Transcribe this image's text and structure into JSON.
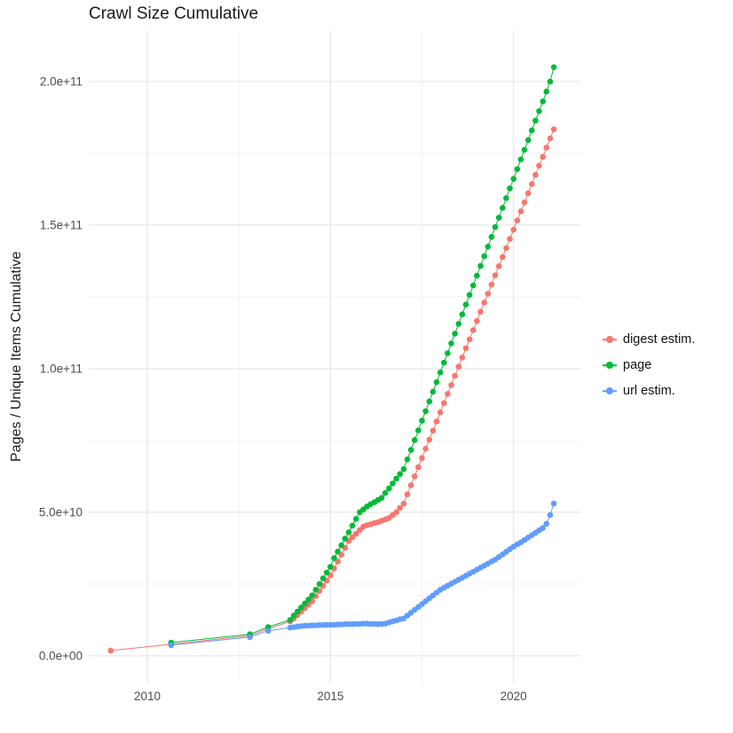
{
  "title": "Crawl Size Cumulative",
  "axes": {
    "y_label": "Pages / Unique Items Cumulative",
    "x_ticks": [
      {
        "value": 2010,
        "label": "2010"
      },
      {
        "value": 2015,
        "label": "2015"
      },
      {
        "value": 2020,
        "label": "2020"
      }
    ],
    "y_ticks": [
      {
        "value": 0,
        "label": "0.0e+00"
      },
      {
        "value": 50,
        "label": "5.0e+10"
      },
      {
        "value": 100,
        "label": "1.0e+11"
      },
      {
        "value": 150,
        "label": "1.5e+11"
      },
      {
        "value": 200,
        "label": "2.0e+11"
      }
    ]
  },
  "legend": {
    "items": [
      {
        "label": "digest estim.",
        "color": "#F8766D"
      },
      {
        "label": "page",
        "color": "#00BA38"
      },
      {
        "label": "url estim.",
        "color": "#619CFF"
      }
    ]
  },
  "colors": {
    "grid_major": "#e4e4e4",
    "grid_minor": "#f1f1f1",
    "tick_text": "#4d4d4d"
  },
  "chart_data": {
    "type": "scatter",
    "geom": "point+line",
    "title": "Crawl Size Cumulative",
    "xlabel": "",
    "ylabel": "Pages / Unique Items Cumulative",
    "grid": true,
    "legend_position": "right",
    "x_domain": [
      2008.4,
      2021.85
    ],
    "y_domain_e9": [
      -9.3,
      217.6
    ],
    "y_unit_note": "values in billions (1e9); axis labels shown in scientific notation",
    "x_major": [
      2010,
      2015,
      2020
    ],
    "x_minor": [
      2012.5,
      2017.5
    ],
    "y_major_e9": [
      0,
      50,
      100,
      150,
      200
    ],
    "y_minor_e9": [
      25,
      75,
      125,
      175
    ],
    "series": [
      {
        "name": "digest estim.",
        "color": "#F8766D",
        "points_e9": [
          [
            2009.0,
            1.8
          ],
          [
            2010.65,
            4.0
          ],
          [
            2012.8,
            7.0
          ],
          [
            2013.3,
            9.3
          ],
          [
            2013.9,
            12.0
          ],
          [
            2014.0,
            13.0
          ],
          [
            2014.1,
            14.2
          ],
          [
            2014.2,
            15.4
          ],
          [
            2014.3,
            16.6
          ],
          [
            2014.4,
            17.8
          ],
          [
            2014.5,
            19.0
          ],
          [
            2014.6,
            20.8
          ],
          [
            2014.7,
            22.6
          ],
          [
            2014.8,
            24.4
          ],
          [
            2014.9,
            26.2
          ],
          [
            2015.0,
            28.0
          ],
          [
            2015.1,
            30.4
          ],
          [
            2015.2,
            32.8
          ],
          [
            2015.3,
            35.2
          ],
          [
            2015.4,
            37.6
          ],
          [
            2015.5,
            40.0
          ],
          [
            2015.6,
            41.3
          ],
          [
            2015.7,
            42.5
          ],
          [
            2015.8,
            43.8
          ],
          [
            2015.9,
            45.0
          ],
          [
            2016.0,
            45.5
          ],
          [
            2016.1,
            45.8
          ],
          [
            2016.2,
            46.2
          ],
          [
            2016.3,
            46.5
          ],
          [
            2016.4,
            47.0
          ],
          [
            2016.5,
            47.5
          ],
          [
            2016.6,
            48.0
          ],
          [
            2016.7,
            49.0
          ],
          [
            2016.8,
            50.0
          ],
          [
            2016.9,
            51.5
          ],
          [
            2017.0,
            53.0
          ],
          [
            2017.1,
            56.2
          ],
          [
            2017.2,
            59.4
          ],
          [
            2017.3,
            62.5
          ],
          [
            2017.4,
            65.7
          ],
          [
            2017.5,
            68.9
          ],
          [
            2017.6,
            72.1
          ],
          [
            2017.7,
            75.3
          ],
          [
            2017.8,
            78.4
          ],
          [
            2017.9,
            81.6
          ],
          [
            2018.0,
            84.8
          ],
          [
            2018.1,
            88.0
          ],
          [
            2018.2,
            91.2
          ],
          [
            2018.3,
            94.3
          ],
          [
            2018.4,
            97.5
          ],
          [
            2018.5,
            100.7
          ],
          [
            2018.6,
            103.9
          ],
          [
            2018.7,
            107.1
          ],
          [
            2018.8,
            110.2
          ],
          [
            2018.9,
            113.4
          ],
          [
            2019.0,
            116.6
          ],
          [
            2019.1,
            119.8
          ],
          [
            2019.2,
            123.0
          ],
          [
            2019.3,
            126.1
          ],
          [
            2019.4,
            129.3
          ],
          [
            2019.5,
            132.5
          ],
          [
            2019.6,
            135.7
          ],
          [
            2019.7,
            138.9
          ],
          [
            2019.8,
            142.0
          ],
          [
            2019.9,
            145.2
          ],
          [
            2020.0,
            148.4
          ],
          [
            2020.1,
            151.6
          ],
          [
            2020.2,
            154.8
          ],
          [
            2020.3,
            157.9
          ],
          [
            2020.4,
            161.1
          ],
          [
            2020.5,
            164.3
          ],
          [
            2020.6,
            167.5
          ],
          [
            2020.7,
            170.7
          ],
          [
            2020.8,
            173.8
          ],
          [
            2020.9,
            177.0
          ],
          [
            2021.0,
            180.2
          ],
          [
            2021.1,
            183.4
          ]
        ]
      },
      {
        "name": "page",
        "color": "#00BA38",
        "points_e9": [
          [
            2010.65,
            4.6
          ],
          [
            2012.8,
            7.5
          ],
          [
            2013.3,
            10.0
          ],
          [
            2013.9,
            12.5
          ],
          [
            2014.0,
            14.0
          ],
          [
            2014.1,
            15.4
          ],
          [
            2014.2,
            16.8
          ],
          [
            2014.3,
            18.2
          ],
          [
            2014.4,
            19.6
          ],
          [
            2014.5,
            21.0
          ],
          [
            2014.6,
            23.0
          ],
          [
            2014.7,
            25.0
          ],
          [
            2014.8,
            27.0
          ],
          [
            2014.9,
            29.0
          ],
          [
            2015.0,
            31.0
          ],
          [
            2015.1,
            34.0
          ],
          [
            2015.2,
            36.3
          ],
          [
            2015.3,
            38.5
          ],
          [
            2015.4,
            40.8
          ],
          [
            2015.5,
            43.0
          ],
          [
            2015.6,
            45.3
          ],
          [
            2015.7,
            47.7
          ],
          [
            2015.8,
            50.0
          ],
          [
            2015.9,
            51.0
          ],
          [
            2016.0,
            52.0
          ],
          [
            2016.1,
            52.8
          ],
          [
            2016.2,
            53.5
          ],
          [
            2016.3,
            54.3
          ],
          [
            2016.4,
            55.0
          ],
          [
            2016.5,
            56.7
          ],
          [
            2016.6,
            58.3
          ],
          [
            2016.7,
            60.0
          ],
          [
            2016.8,
            61.7
          ],
          [
            2016.9,
            63.3
          ],
          [
            2017.0,
            65.0
          ],
          [
            2017.1,
            68.4
          ],
          [
            2017.2,
            71.7
          ],
          [
            2017.3,
            75.1
          ],
          [
            2017.4,
            78.5
          ],
          [
            2017.5,
            81.9
          ],
          [
            2017.6,
            85.2
          ],
          [
            2017.7,
            88.6
          ],
          [
            2017.8,
            92.0
          ],
          [
            2017.9,
            95.3
          ],
          [
            2018.0,
            98.7
          ],
          [
            2018.1,
            102.1
          ],
          [
            2018.2,
            105.4
          ],
          [
            2018.3,
            108.8
          ],
          [
            2018.4,
            112.2
          ],
          [
            2018.5,
            115.6
          ],
          [
            2018.6,
            118.9
          ],
          [
            2018.7,
            122.3
          ],
          [
            2018.8,
            125.7
          ],
          [
            2018.9,
            129.0
          ],
          [
            2019.0,
            132.4
          ],
          [
            2019.1,
            135.8
          ],
          [
            2019.2,
            139.2
          ],
          [
            2019.3,
            142.5
          ],
          [
            2019.4,
            145.9
          ],
          [
            2019.5,
            149.3
          ],
          [
            2019.6,
            152.6
          ],
          [
            2019.7,
            156.0
          ],
          [
            2019.8,
            159.4
          ],
          [
            2019.9,
            162.8
          ],
          [
            2020.0,
            166.1
          ],
          [
            2020.1,
            169.5
          ],
          [
            2020.2,
            172.9
          ],
          [
            2020.3,
            176.2
          ],
          [
            2020.4,
            179.6
          ],
          [
            2020.5,
            183.0
          ],
          [
            2020.6,
            186.4
          ],
          [
            2020.7,
            189.7
          ],
          [
            2020.8,
            193.1
          ],
          [
            2020.9,
            196.5
          ],
          [
            2021.0,
            200.0
          ],
          [
            2021.1,
            205.0
          ]
        ]
      },
      {
        "name": "url estim.",
        "color": "#619CFF",
        "points_e9": [
          [
            2010.65,
            3.7
          ],
          [
            2012.8,
            6.5
          ],
          [
            2013.3,
            8.7
          ],
          [
            2013.9,
            9.8
          ],
          [
            2014.0,
            10.0
          ],
          [
            2014.1,
            10.2
          ],
          [
            2014.2,
            10.3
          ],
          [
            2014.3,
            10.5
          ],
          [
            2014.4,
            10.5
          ],
          [
            2014.5,
            10.6
          ],
          [
            2014.6,
            10.6
          ],
          [
            2014.7,
            10.7
          ],
          [
            2014.8,
            10.7
          ],
          [
            2014.9,
            10.8
          ],
          [
            2015.0,
            10.8
          ],
          [
            2015.1,
            10.8
          ],
          [
            2015.2,
            10.9
          ],
          [
            2015.3,
            10.9
          ],
          [
            2015.4,
            11.0
          ],
          [
            2015.5,
            11.0
          ],
          [
            2015.6,
            11.0
          ],
          [
            2015.7,
            11.1
          ],
          [
            2015.8,
            11.1
          ],
          [
            2015.9,
            11.2
          ],
          [
            2016.0,
            11.2
          ],
          [
            2016.1,
            11.1
          ],
          [
            2016.2,
            11.1
          ],
          [
            2016.3,
            11.0
          ],
          [
            2016.4,
            11.1
          ],
          [
            2016.5,
            11.2
          ],
          [
            2016.6,
            11.6
          ],
          [
            2016.7,
            12.0
          ],
          [
            2016.8,
            12.3
          ],
          [
            2016.9,
            12.7
          ],
          [
            2017.0,
            13.0
          ],
          [
            2017.1,
            14.0
          ],
          [
            2017.2,
            15.0
          ],
          [
            2017.3,
            16.0
          ],
          [
            2017.4,
            17.0
          ],
          [
            2017.5,
            18.0
          ],
          [
            2017.6,
            19.0
          ],
          [
            2017.7,
            20.0
          ],
          [
            2017.8,
            21.0
          ],
          [
            2017.9,
            22.0
          ],
          [
            2018.0,
            23.0
          ],
          [
            2018.1,
            23.7
          ],
          [
            2018.2,
            24.4
          ],
          [
            2018.3,
            25.1
          ],
          [
            2018.4,
            25.8
          ],
          [
            2018.5,
            26.5
          ],
          [
            2018.6,
            27.2
          ],
          [
            2018.7,
            27.9
          ],
          [
            2018.8,
            28.6
          ],
          [
            2018.9,
            29.3
          ],
          [
            2019.0,
            30.0
          ],
          [
            2019.1,
            30.7
          ],
          [
            2019.2,
            31.4
          ],
          [
            2019.3,
            32.1
          ],
          [
            2019.4,
            32.8
          ],
          [
            2019.5,
            33.5
          ],
          [
            2019.6,
            34.4
          ],
          [
            2019.7,
            35.3
          ],
          [
            2019.8,
            36.2
          ],
          [
            2019.9,
            37.1
          ],
          [
            2020.0,
            38.0
          ],
          [
            2020.1,
            38.8
          ],
          [
            2020.2,
            39.5
          ],
          [
            2020.3,
            40.3
          ],
          [
            2020.4,
            41.2
          ],
          [
            2020.5,
            42.0
          ],
          [
            2020.6,
            42.8
          ],
          [
            2020.7,
            43.7
          ],
          [
            2020.8,
            44.5
          ],
          [
            2020.9,
            46.0
          ],
          [
            2021.0,
            49.0
          ],
          [
            2021.1,
            53.0
          ]
        ]
      }
    ]
  }
}
